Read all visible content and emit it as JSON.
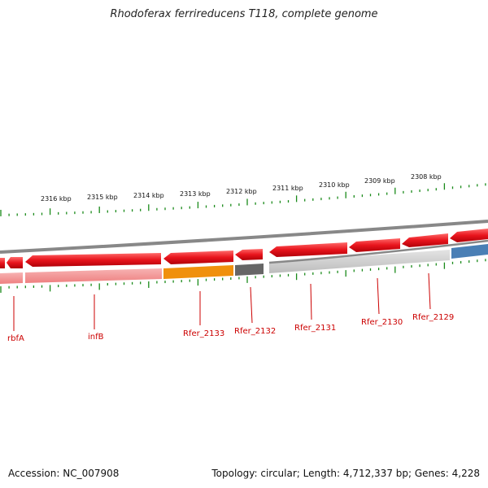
{
  "title": "Rhodoferax ferrireducens T118, complete genome",
  "footer": {
    "accession": "Accession: NC_007908",
    "stats": "Topology: circular; Length: 4,712,337 bp; Genes: 4,228"
  },
  "scale": {
    "unit": "kbp",
    "labels": [
      "2316 kbp",
      "2315 kbp",
      "2314 kbp",
      "2313 kbp",
      "2312 kbp",
      "2311 kbp",
      "2310 kbp",
      "2309 kbp",
      "2308 kbp"
    ]
  },
  "gene_labels": [
    "rbfA",
    "infB",
    "Rfer_2133",
    "Rfer_2132",
    "Rfer_2131",
    "Rfer_2130",
    "Rfer_2129"
  ],
  "colors": {
    "cds_forward": "#e8141c",
    "cds_reverse_track": "#f08080",
    "gene_highlight": "#f0900c",
    "gene_dark": "#666666",
    "gene_grey": "#c8c8c8",
    "gene_blue": "#4a7fb5",
    "backbone": "#888888",
    "tick": "#1a8a1a",
    "label": "#cc0000"
  }
}
